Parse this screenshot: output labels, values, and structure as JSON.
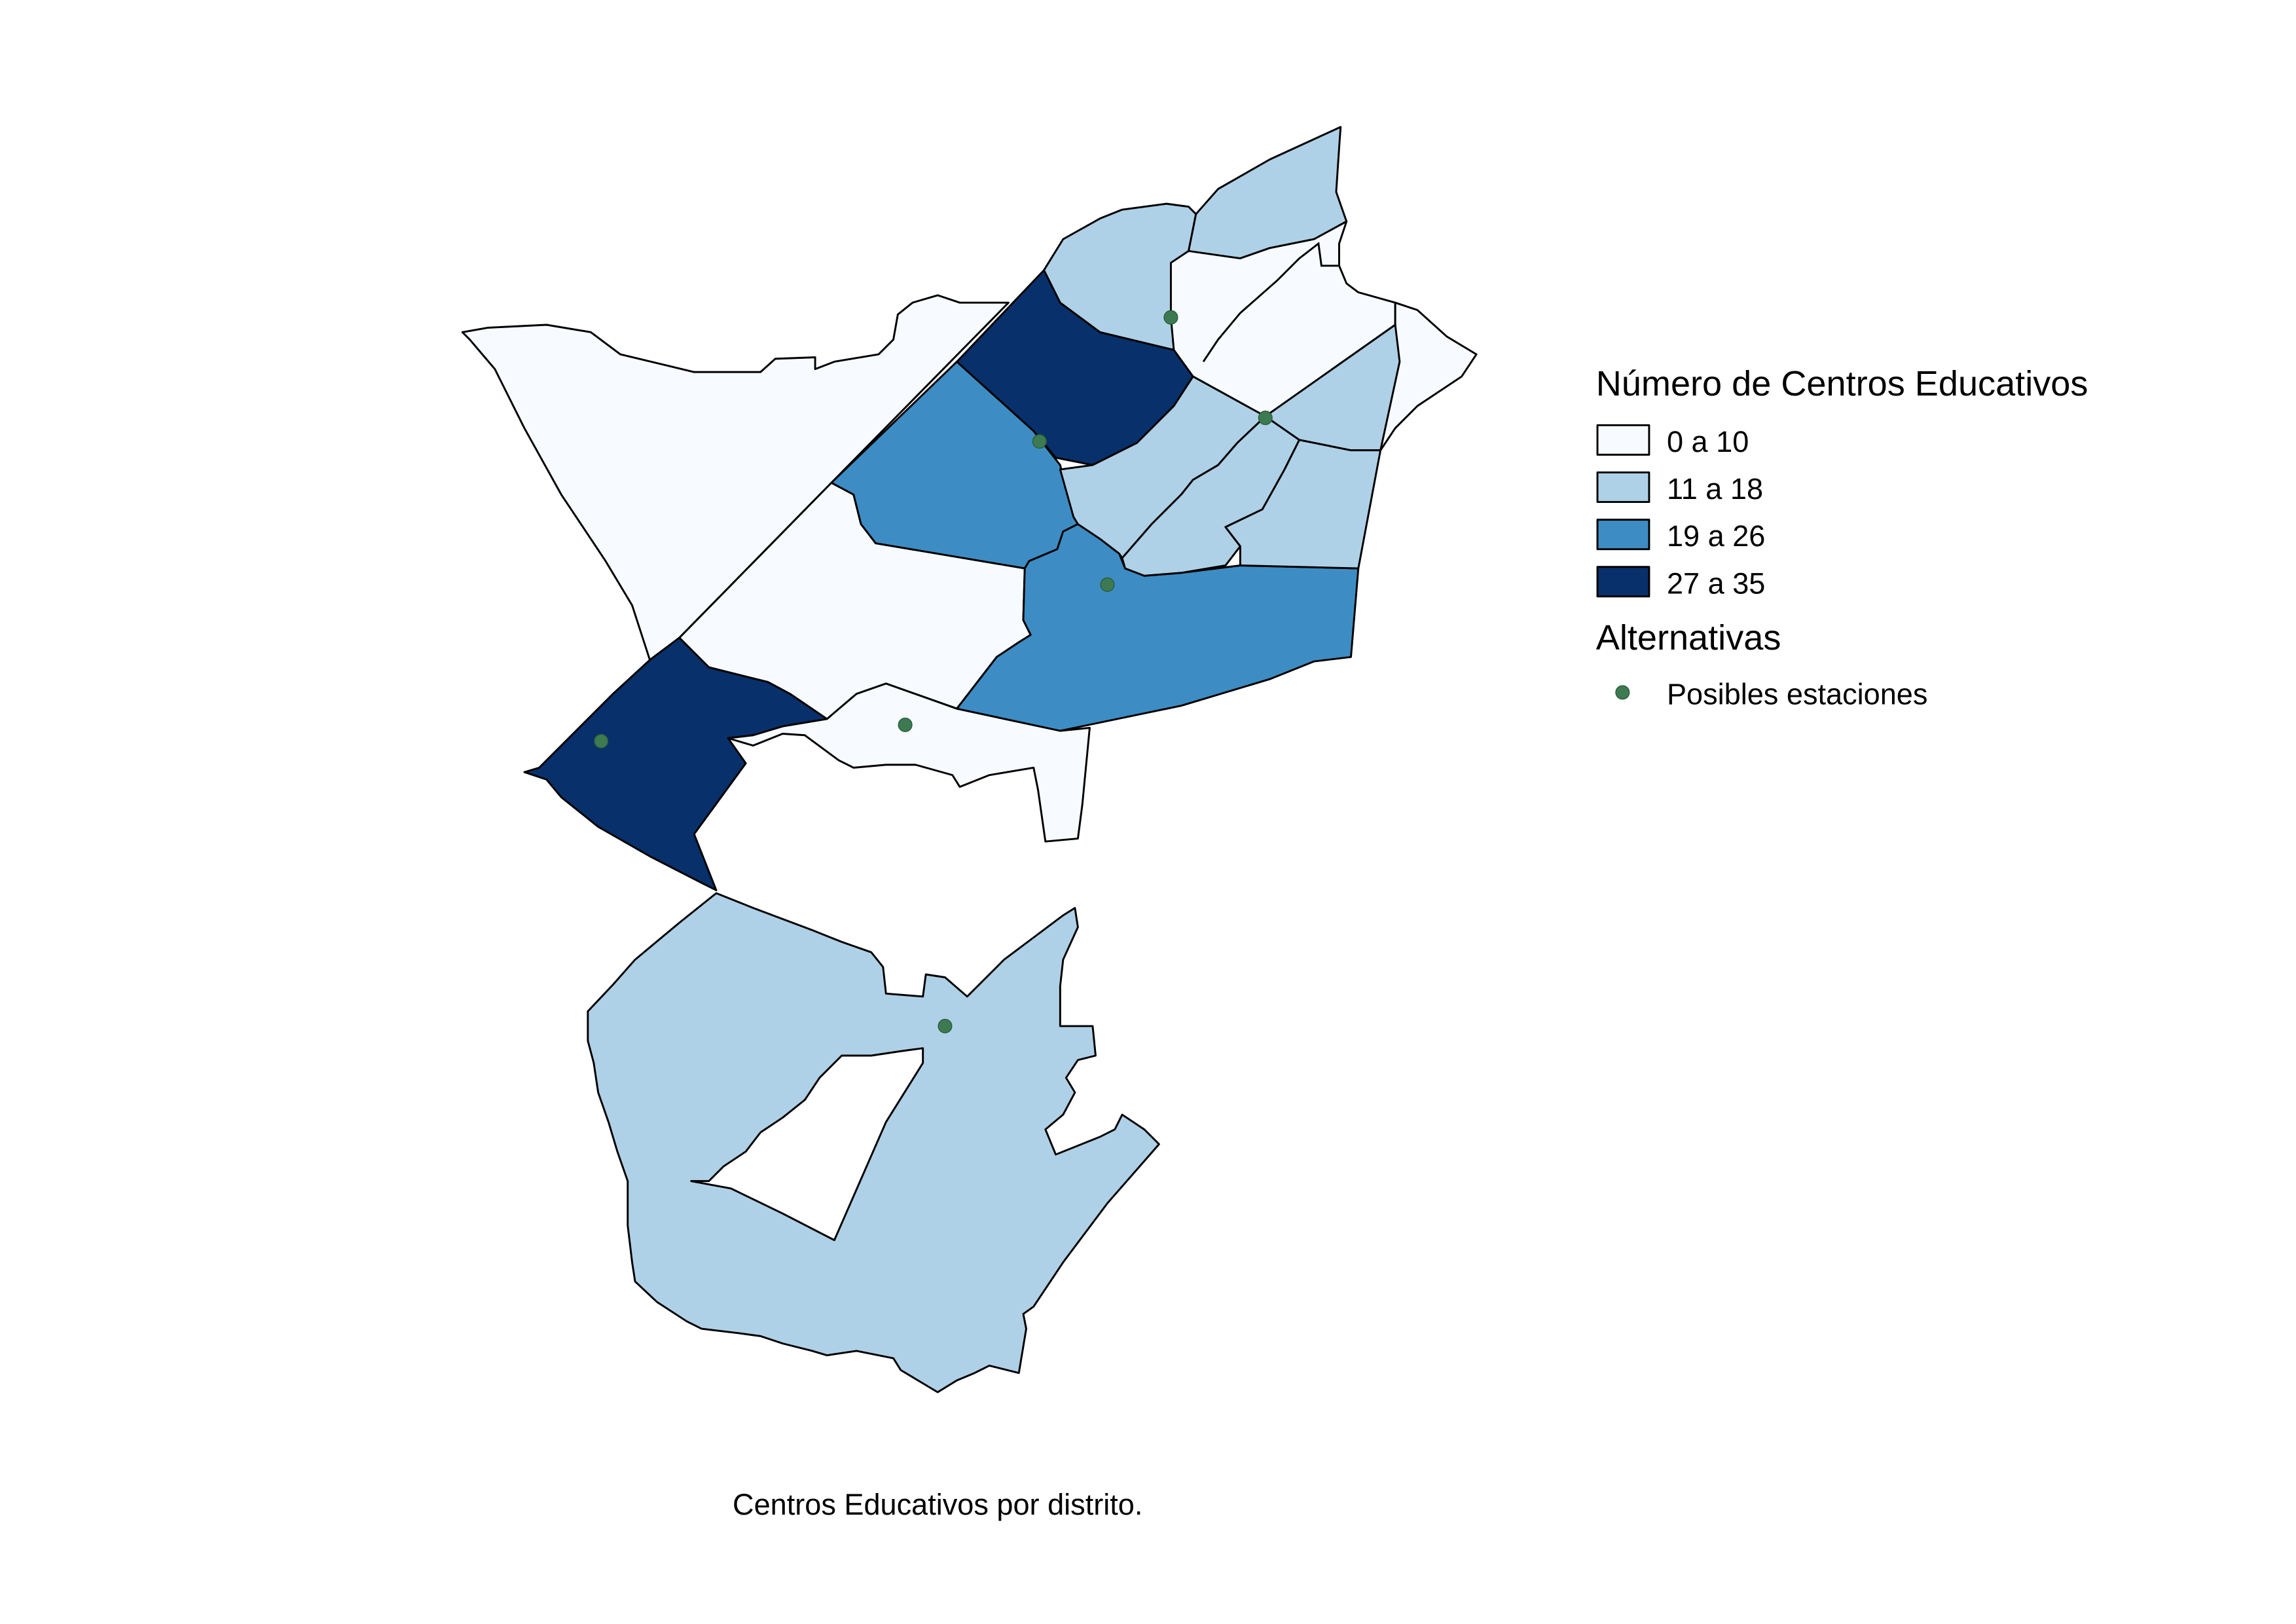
{
  "legend": {
    "title": "Número de Centros Educativos",
    "classes": [
      {
        "label": "0 a 10",
        "color": "#f7fbff"
      },
      {
        "label": "11 a 18",
        "color": "#afd1e7"
      },
      {
        "label": "19 a 26",
        "color": "#3d8dc4"
      },
      {
        "label": "27 a 35",
        "color": "#08306b"
      }
    ],
    "points_title": "Alternativas",
    "points_label": "Posibles estaciones",
    "points_color": "#3d7a52"
  },
  "caption": "Centros Educativos por distrito."
}
